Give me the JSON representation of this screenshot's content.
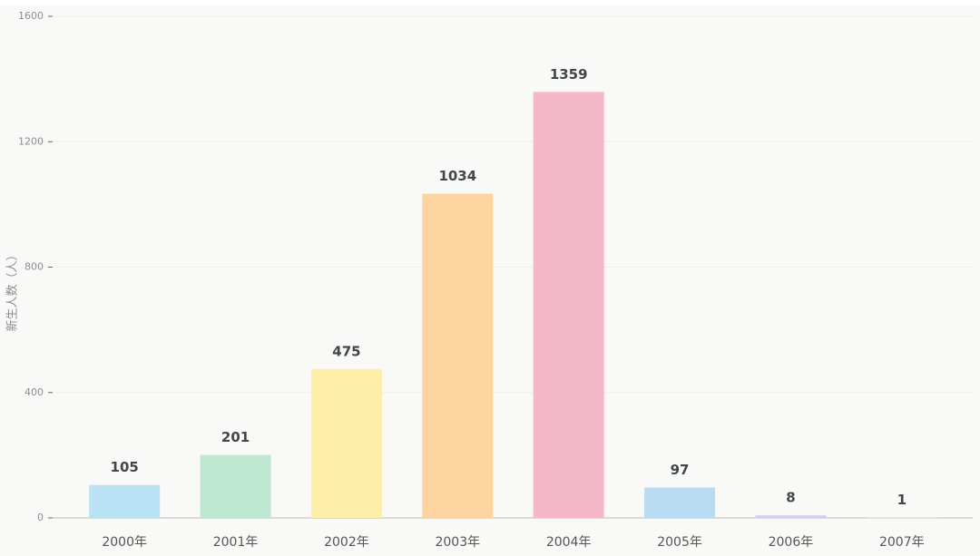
{
  "chart_data": {
    "type": "bar",
    "y_label": "新生人数（人）",
    "categories": [
      "2000年",
      "2001年",
      "2002年",
      "2003年",
      "2004年",
      "2005年",
      "2006年",
      "2007年"
    ],
    "values": [
      105,
      201,
      475,
      1034,
      1359,
      97,
      8,
      1
    ],
    "colors": [
      "#b9e2f5",
      "#bfe8d3",
      "#fdeea8",
      "#fdd39f",
      "#f5b8cb",
      "#b9dcf2",
      "#d3cdee",
      "#f3d3dc"
    ],
    "ylim": [
      0,
      1600
    ],
    "yticks": [
      0,
      400,
      800,
      1200,
      1600
    ],
    "grid": true
  }
}
